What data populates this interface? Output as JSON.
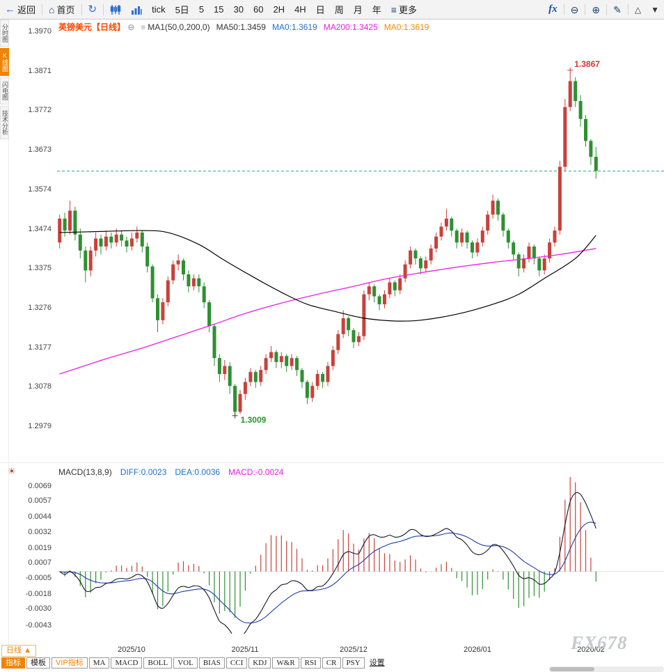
{
  "icons": {
    "back": "←",
    "home": "⌂",
    "refresh": "↻",
    "more": "≡",
    "fx": "fx",
    "zoom_out": "⊖",
    "zoom_in": "⊕",
    "edit": "✎",
    "triangle_up": "△",
    "triangle_down": "▼",
    "collapse": "⊖",
    "ma_settings": "≡",
    "indicator_sun": "☀",
    "period_up": "▲"
  },
  "toolbar": {
    "back_label": "返回",
    "home_label": "首页",
    "tick_label": "tick",
    "five_day_label": "5日",
    "intervals": [
      "5",
      "15",
      "30",
      "60",
      "2H",
      "4H",
      "日",
      "周",
      "月",
      "年"
    ],
    "more_label": "更多"
  },
  "left_tabs": [
    {
      "label": "分时图",
      "active": false
    },
    {
      "label": "K线图",
      "active": true
    },
    {
      "label": "闪电图",
      "active": false
    },
    {
      "label": "技术分析",
      "active": false
    }
  ],
  "chart_header": {
    "symbol": "英镑美元",
    "period": "【日线】",
    "ma_group": "MA1(50,0,200,0)",
    "ma50": "MA50:1.3459",
    "ma0_blue": "MA0:1.3619",
    "ma200": "MA200:1.3425",
    "ma0_orange": "MA0:1.3619"
  },
  "macd_header": {
    "name": "MACD(13,8,9)",
    "diff": "DIFF:0.0023",
    "dea": "DEA:0.0036",
    "macd": "MACD:-0.0024"
  },
  "bottom": {
    "period_label": "日线",
    "watermark": "FX678",
    "indicator_tabs": [
      {
        "label": "指标",
        "style": "active"
      },
      {
        "label": "模板",
        "style": ""
      },
      {
        "label": "VIP指标",
        "style": "vip"
      },
      {
        "label": "MA",
        "style": "code"
      },
      {
        "label": "MACD",
        "style": "code"
      },
      {
        "label": "BOLL",
        "style": "code"
      },
      {
        "label": "VOL",
        "style": "code"
      },
      {
        "label": "BIAS",
        "style": "code"
      },
      {
        "label": "CCI",
        "style": "code"
      },
      {
        "label": "KDJ",
        "style": "code"
      },
      {
        "label": "W&R",
        "style": "code"
      },
      {
        "label": "RSI",
        "style": "code"
      },
      {
        "label": "CR",
        "style": "code"
      },
      {
        "label": "PSY",
        "style": "code"
      },
      {
        "label": "设置",
        "style": "plain"
      }
    ]
  },
  "chart_data": {
    "type": "candlestick",
    "title": "英镑美元 日线 (GBP/USD Daily)",
    "price_range": [
      1.2979,
      1.397
    ],
    "y_axis_ticks": [
      "1.3970",
      "1.3871",
      "1.3772",
      "1.3673",
      "1.3574",
      "1.3474",
      "1.3375",
      "1.3276",
      "1.3177",
      "1.3078",
      "1.2979"
    ],
    "current_price": 1.3619,
    "high_annotation": {
      "value": "1.3867",
      "index": 99
    },
    "low_annotation": {
      "value": "1.3009",
      "index": 34
    },
    "x_axis_labels": [
      {
        "label": "2025/10",
        "index": 14
      },
      {
        "label": "2025/11",
        "index": 36
      },
      {
        "label": "2025/12",
        "index": 57
      },
      {
        "label": "2026/01",
        "index": 81
      },
      {
        "label": "2026/02",
        "index": 103
      }
    ],
    "candles": [
      [
        1.344,
        1.351,
        1.3425,
        1.35
      ],
      [
        1.35,
        1.3515,
        1.3455,
        1.347
      ],
      [
        1.347,
        1.3545,
        1.346,
        1.352
      ],
      [
        1.352,
        1.353,
        1.3445,
        1.346
      ],
      [
        1.346,
        1.3475,
        1.34,
        1.342
      ],
      [
        1.342,
        1.343,
        1.334,
        1.337
      ],
      [
        1.337,
        1.343,
        1.3355,
        1.342
      ],
      [
        1.342,
        1.3465,
        1.3405,
        1.345
      ],
      [
        1.345,
        1.346,
        1.341,
        1.343
      ],
      [
        1.343,
        1.347,
        1.342,
        1.3455
      ],
      [
        1.3455,
        1.3465,
        1.3425,
        1.344
      ],
      [
        1.344,
        1.3475,
        1.343,
        1.346
      ],
      [
        1.346,
        1.347,
        1.343,
        1.3445
      ],
      [
        1.3445,
        1.3455,
        1.3415,
        1.343
      ],
      [
        1.343,
        1.3465,
        1.342,
        1.345
      ],
      [
        1.345,
        1.348,
        1.344,
        1.3465
      ],
      [
        1.3465,
        1.347,
        1.3415,
        1.343
      ],
      [
        1.343,
        1.344,
        1.3365,
        1.338
      ],
      [
        1.338,
        1.3385,
        1.329,
        1.33
      ],
      [
        1.33,
        1.331,
        1.3215,
        1.3245
      ],
      [
        1.3245,
        1.33,
        1.3235,
        1.329
      ],
      [
        1.329,
        1.3355,
        1.328,
        1.3345
      ],
      [
        1.3345,
        1.3395,
        1.3335,
        1.3385
      ],
      [
        1.3385,
        1.341,
        1.337,
        1.3395
      ],
      [
        1.3395,
        1.34,
        1.3345,
        1.336
      ],
      [
        1.336,
        1.337,
        1.3315,
        1.333
      ],
      [
        1.333,
        1.336,
        1.332,
        1.335
      ],
      [
        1.335,
        1.336,
        1.3315,
        1.333
      ],
      [
        1.333,
        1.334,
        1.3275,
        1.329
      ],
      [
        1.329,
        1.3295,
        1.3215,
        1.323
      ],
      [
        1.323,
        1.3235,
        1.313,
        1.315
      ],
      [
        1.315,
        1.316,
        1.309,
        1.311
      ],
      [
        1.311,
        1.3145,
        1.3095,
        1.313
      ],
      [
        1.313,
        1.314,
        1.306,
        1.308
      ],
      [
        1.308,
        1.3085,
        1.3009,
        1.3015
      ],
      [
        1.3015,
        1.307,
        1.301,
        1.306
      ],
      [
        1.306,
        1.31,
        1.3045,
        1.309
      ],
      [
        1.309,
        1.3125,
        1.308,
        1.3115
      ],
      [
        1.3115,
        1.312,
        1.3075,
        1.309
      ],
      [
        1.309,
        1.313,
        1.308,
        1.312
      ],
      [
        1.312,
        1.316,
        1.311,
        1.315
      ],
      [
        1.315,
        1.318,
        1.314,
        1.3165
      ],
      [
        1.3165,
        1.317,
        1.3125,
        1.314
      ],
      [
        1.314,
        1.3165,
        1.3125,
        1.3155
      ],
      [
        1.3155,
        1.316,
        1.3115,
        1.313
      ],
      [
        1.313,
        1.316,
        1.312,
        1.315
      ],
      [
        1.315,
        1.3155,
        1.3105,
        1.312
      ],
      [
        1.312,
        1.3125,
        1.3075,
        1.309
      ],
      [
        1.309,
        1.3095,
        1.3035,
        1.305
      ],
      [
        1.305,
        1.309,
        1.304,
        1.308
      ],
      [
        1.308,
        1.312,
        1.307,
        1.311
      ],
      [
        1.311,
        1.3115,
        1.3075,
        1.309
      ],
      [
        1.309,
        1.314,
        1.308,
        1.313
      ],
      [
        1.313,
        1.318,
        1.312,
        1.317
      ],
      [
        1.317,
        1.322,
        1.316,
        1.321
      ],
      [
        1.321,
        1.327,
        1.32,
        1.325
      ],
      [
        1.325,
        1.3255,
        1.3205,
        1.322
      ],
      [
        1.322,
        1.3225,
        1.3175,
        1.319
      ],
      [
        1.319,
        1.3215,
        1.318,
        1.3205
      ],
      [
        1.3205,
        1.332,
        1.3195,
        1.331
      ],
      [
        1.331,
        1.334,
        1.3295,
        1.333
      ],
      [
        1.333,
        1.3335,
        1.329,
        1.3305
      ],
      [
        1.3305,
        1.331,
        1.327,
        1.3285
      ],
      [
        1.3285,
        1.332,
        1.3275,
        1.331
      ],
      [
        1.331,
        1.335,
        1.33,
        1.334
      ],
      [
        1.334,
        1.3345,
        1.3305,
        1.332
      ],
      [
        1.332,
        1.336,
        1.331,
        1.335
      ],
      [
        1.335,
        1.3395,
        1.334,
        1.3385
      ],
      [
        1.3385,
        1.343,
        1.3375,
        1.342
      ],
      [
        1.342,
        1.3425,
        1.3385,
        1.34
      ],
      [
        1.34,
        1.3405,
        1.336,
        1.3375
      ],
      [
        1.3375,
        1.3405,
        1.3365,
        1.3395
      ],
      [
        1.3395,
        1.3435,
        1.3385,
        1.3425
      ],
      [
        1.3425,
        1.3465,
        1.3415,
        1.3455
      ],
      [
        1.3455,
        1.349,
        1.3445,
        1.348
      ],
      [
        1.348,
        1.3525,
        1.347,
        1.35
      ],
      [
        1.35,
        1.3505,
        1.3455,
        1.347
      ],
      [
        1.347,
        1.3475,
        1.3425,
        1.344
      ],
      [
        1.344,
        1.3475,
        1.343,
        1.3465
      ],
      [
        1.3465,
        1.347,
        1.3425,
        1.344
      ],
      [
        1.344,
        1.3445,
        1.34,
        1.3415
      ],
      [
        1.3415,
        1.345,
        1.3405,
        1.344
      ],
      [
        1.344,
        1.348,
        1.343,
        1.347
      ],
      [
        1.347,
        1.352,
        1.346,
        1.351
      ],
      [
        1.351,
        1.356,
        1.35,
        1.3545
      ],
      [
        1.3545,
        1.355,
        1.3495,
        1.351
      ],
      [
        1.351,
        1.3515,
        1.3455,
        1.347
      ],
      [
        1.347,
        1.3475,
        1.3425,
        1.344
      ],
      [
        1.344,
        1.3445,
        1.3395,
        1.341
      ],
      [
        1.341,
        1.3415,
        1.3355,
        1.3375
      ],
      [
        1.3375,
        1.341,
        1.3365,
        1.34
      ],
      [
        1.34,
        1.344,
        1.339,
        1.343
      ],
      [
        1.343,
        1.3435,
        1.3385,
        1.34
      ],
      [
        1.34,
        1.3405,
        1.3355,
        1.337
      ],
      [
        1.337,
        1.341,
        1.336,
        1.34
      ],
      [
        1.34,
        1.345,
        1.339,
        1.344
      ],
      [
        1.344,
        1.348,
        1.343,
        1.347
      ],
      [
        1.347,
        1.3645,
        1.346,
        1.363
      ],
      [
        1.363,
        1.38,
        1.362,
        1.378
      ],
      [
        1.378,
        1.3867,
        1.377,
        1.3845
      ],
      [
        1.3845,
        1.3855,
        1.378,
        1.3795
      ],
      [
        1.3795,
        1.381,
        1.373,
        1.375
      ],
      [
        1.375,
        1.376,
        1.368,
        1.3695
      ],
      [
        1.3695,
        1.37,
        1.3635,
        1.3655
      ],
      [
        1.3655,
        1.368,
        1.36,
        1.362
      ]
    ],
    "ma50_points": [
      [
        0,
        1.3465
      ],
      [
        9,
        1.3468
      ],
      [
        16,
        1.347
      ],
      [
        21,
        1.3465
      ],
      [
        27,
        1.3435
      ],
      [
        32,
        1.3395
      ],
      [
        38,
        1.335
      ],
      [
        43,
        1.3315
      ],
      [
        48,
        1.3285
      ],
      [
        54,
        1.3265
      ],
      [
        59,
        1.325
      ],
      [
        65,
        1.3243
      ],
      [
        70,
        1.3245
      ],
      [
        77,
        1.326
      ],
      [
        84,
        1.3285
      ],
      [
        89,
        1.331
      ],
      [
        94,
        1.335
      ],
      [
        100,
        1.34
      ],
      [
        104,
        1.3458
      ]
    ],
    "ma200_points": [
      [
        0,
        1.311
      ],
      [
        9,
        1.3148
      ],
      [
        16,
        1.3175
      ],
      [
        23,
        1.3205
      ],
      [
        30,
        1.3235
      ],
      [
        36,
        1.3262
      ],
      [
        43,
        1.3288
      ],
      [
        50,
        1.331
      ],
      [
        57,
        1.333
      ],
      [
        63,
        1.3348
      ],
      [
        70,
        1.3364
      ],
      [
        77,
        1.3378
      ],
      [
        84,
        1.339
      ],
      [
        91,
        1.34
      ],
      [
        97,
        1.341
      ],
      [
        104,
        1.3425
      ]
    ],
    "macd": {
      "params": "MACD(13,8,9)",
      "fast": 8,
      "slow": 13,
      "signal": 9,
      "diff_last": 0.0023,
      "dea_last": 0.0036,
      "macd_last": -0.0024,
      "axis_ticks": [
        "0.0069",
        "0.0057",
        "0.0044",
        "0.0032",
        "0.0019",
        "0.0007",
        "-0.0005",
        "-0.0018",
        "-0.0030",
        "-0.0043"
      ],
      "range": [
        -0.005,
        0.0076
      ]
    },
    "colors": {
      "up": "#c9413a",
      "down": "#2e9032",
      "ma50": "#000000",
      "ma200": "#ea1fe0",
      "current_line": "#2e9e9e",
      "diff_line": "#15152a",
      "dea_line": "#1c3faa",
      "high_label": "#e03030",
      "low_label": "#2e9032"
    }
  }
}
